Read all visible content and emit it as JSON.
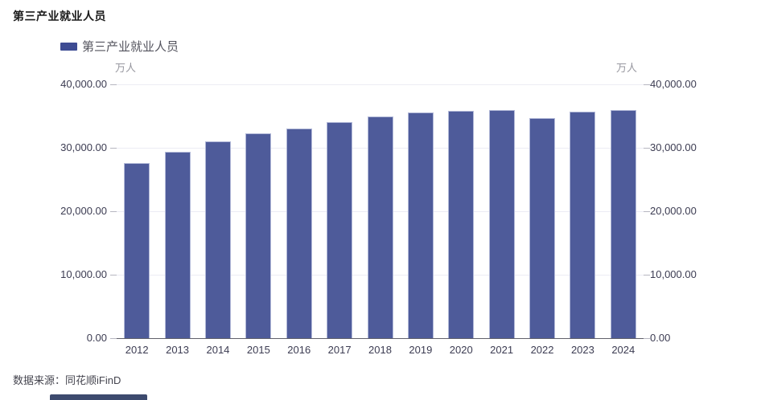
{
  "page": {
    "title": "第三产业就业人员",
    "source_note": "数据来源：同花顺iFinD"
  },
  "legend": {
    "label": "第三产业就业人员",
    "swatch_color": "#3e4c93"
  },
  "axes": {
    "left_unit": "万人",
    "right_unit": "万人",
    "y_tick_labels": [
      "40,000.00",
      "30,000.00",
      "20,000.00",
      "10,000.00",
      "0.00"
    ]
  },
  "colors": {
    "bar_fill": "#4e5b9a",
    "bar_border": "#b2b9d8",
    "gridline": "#ececf4",
    "axis_line": "#61616b",
    "bottom_fragment": "#3d4a6e"
  },
  "chart_data": {
    "type": "bar",
    "title": "第三产业就业人员",
    "series_name": "第三产业就业人员",
    "categories": [
      "2012",
      "2013",
      "2014",
      "2015",
      "2016",
      "2017",
      "2018",
      "2019",
      "2020",
      "2021",
      "2022",
      "2023",
      "2024"
    ],
    "values": [
      27550,
      29400,
      31000,
      32300,
      33100,
      34000,
      34900,
      35600,
      35800,
      35950,
      34650,
      35700,
      35950
    ],
    "xlabel": "",
    "ylabel": "万人",
    "ylim": [
      0,
      40000
    ],
    "y_tick_interval": 10000,
    "grid": true,
    "legend_position": "top-left"
  }
}
